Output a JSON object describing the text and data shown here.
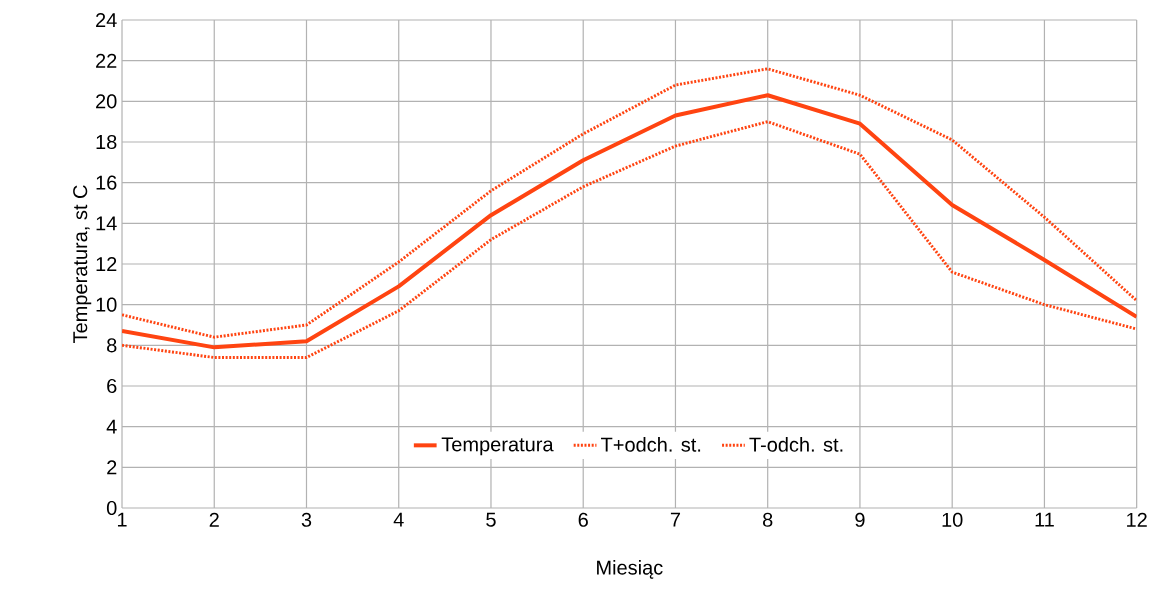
{
  "chart_data": {
    "type": "line",
    "xlabel": "Miesiąc",
    "ylabel": "Temperatura, st C",
    "x": [
      1,
      2,
      3,
      4,
      5,
      6,
      7,
      8,
      9,
      10,
      11,
      12
    ],
    "series": [
      {
        "name": "Temperatura",
        "color": "#ff4411",
        "line_style": "solid",
        "values": [
          8.7,
          7.9,
          8.2,
          10.9,
          14.4,
          17.1,
          19.3,
          20.3,
          18.9,
          14.9,
          12.2,
          9.4
        ]
      },
      {
        "name": "T+odch. st.",
        "color": "#ff4411",
        "line_style": "dotted",
        "values": [
          9.5,
          8.4,
          9.0,
          12.1,
          15.6,
          18.4,
          20.8,
          21.6,
          20.3,
          18.1,
          14.3,
          10.2
        ]
      },
      {
        "name": "T-odch. st.",
        "color": "#ff4411",
        "line_style": "dotted",
        "values": [
          8.0,
          7.4,
          7.4,
          9.7,
          13.2,
          15.8,
          17.8,
          19.0,
          17.4,
          11.6,
          10.0,
          8.8
        ]
      }
    ],
    "xlim": [
      1,
      12
    ],
    "xticks": [
      1,
      2,
      3,
      4,
      5,
      6,
      7,
      8,
      9,
      10,
      11,
      12
    ],
    "ylim": [
      0,
      24
    ],
    "yticks": [
      0,
      2,
      4,
      6,
      8,
      10,
      12,
      14,
      16,
      18,
      20,
      22,
      24
    ],
    "grid": true,
    "legend": "bottom",
    "marker": "none"
  }
}
